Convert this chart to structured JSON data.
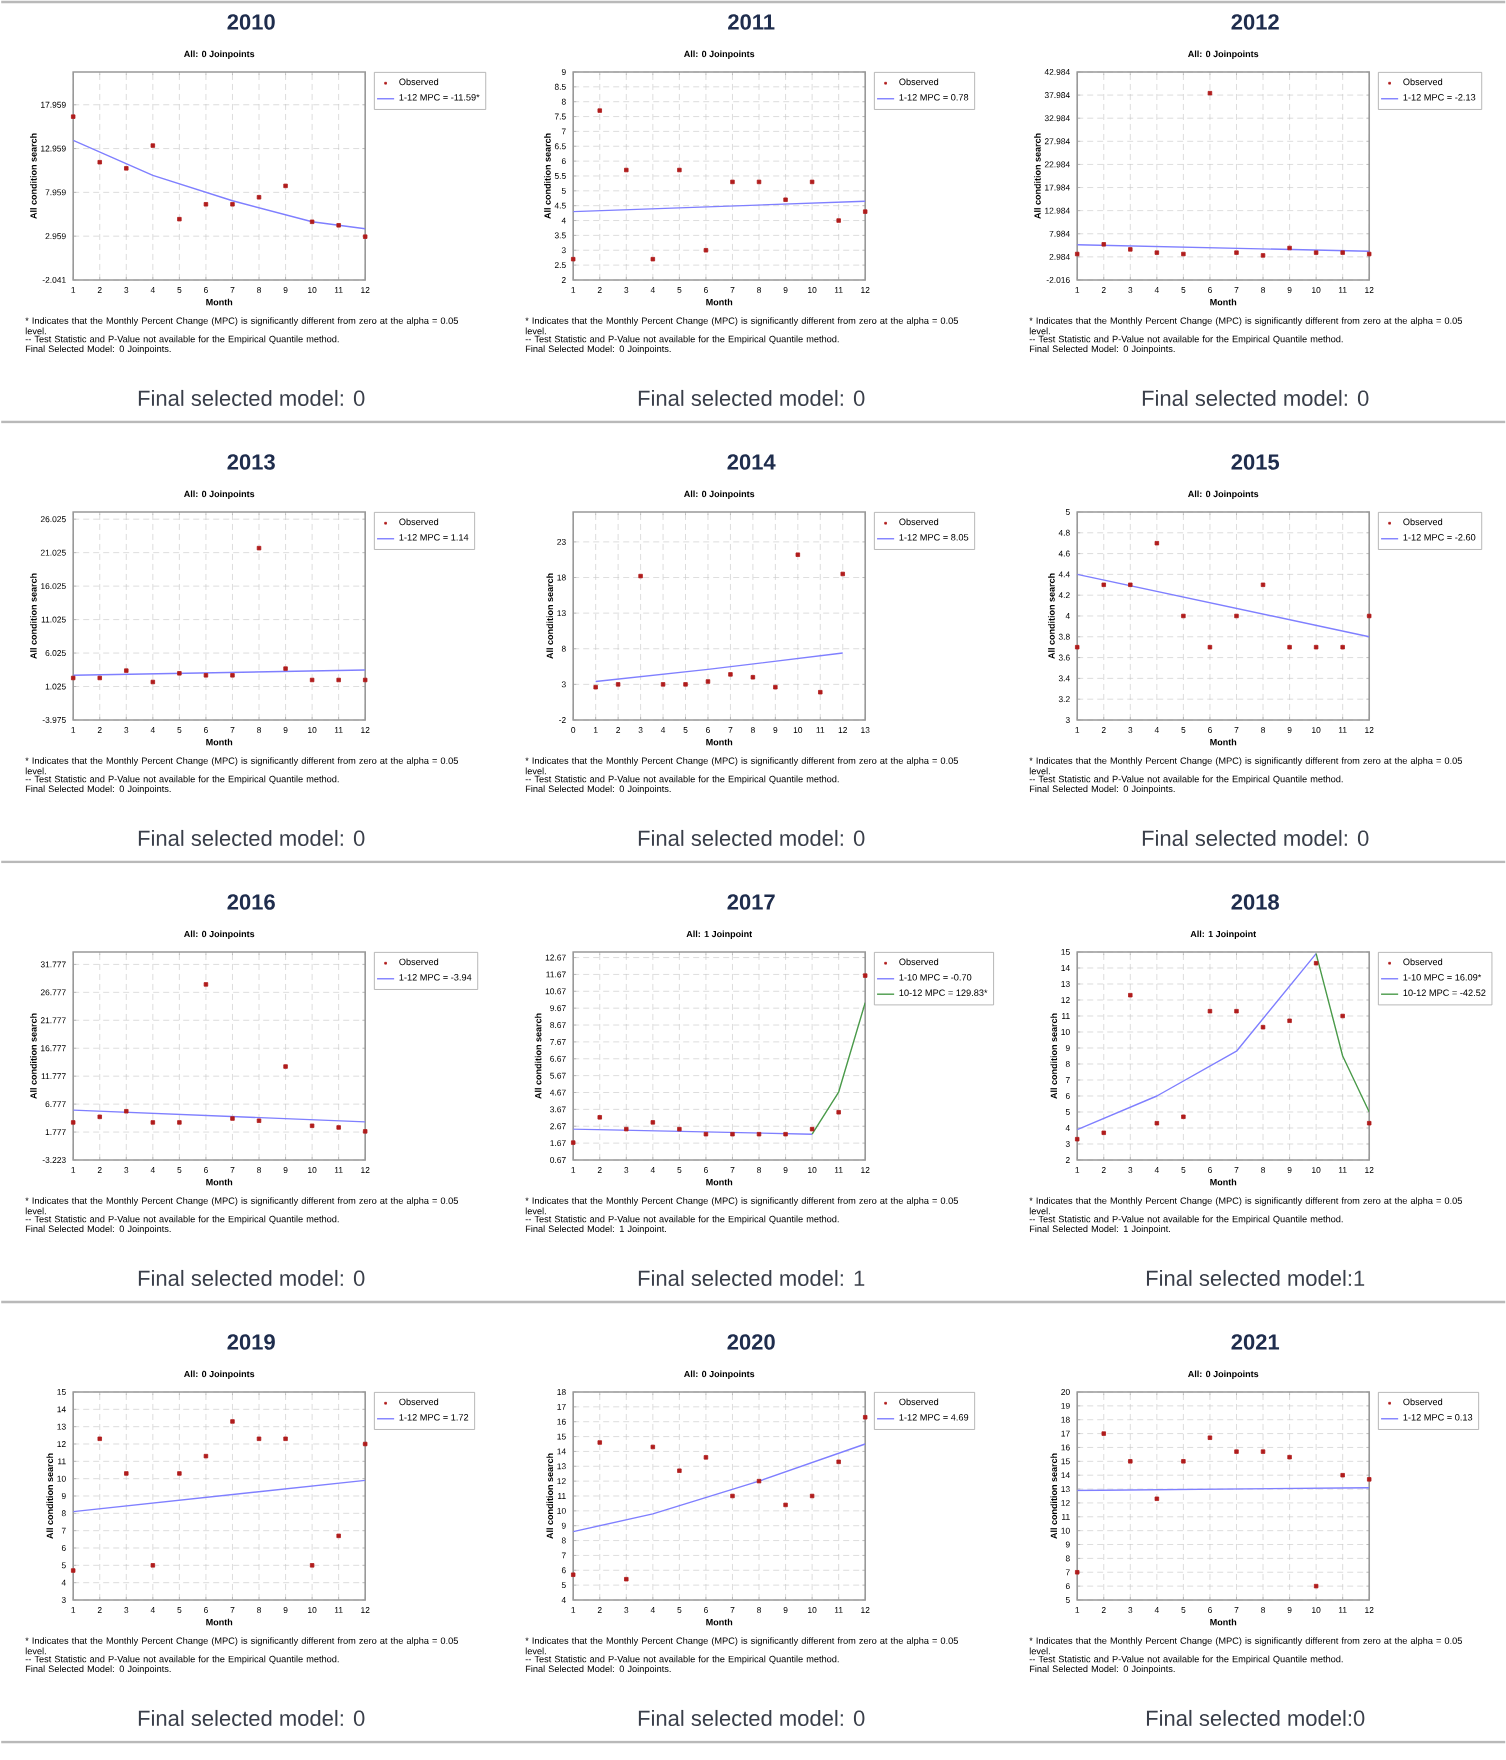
{
  "chart_data": [
    {
      "type": "scatter",
      "title": "2010",
      "subtitle": "All: 0 Joinpoints",
      "xlabel": "Month",
      "ylabel": "All condition search",
      "x": [
        1,
        2,
        3,
        4,
        5,
        6,
        7,
        8,
        9,
        10,
        11,
        12
      ],
      "xlim": [
        1,
        12
      ],
      "xticks": [
        1,
        2,
        3,
        4,
        5,
        6,
        7,
        8,
        9,
        10,
        11,
        12
      ],
      "ylim": [
        -2.041,
        21.7
      ],
      "yticks": [
        -2.041,
        2.959,
        7.959,
        12.959,
        17.959
      ],
      "grid": true,
      "legend": "right",
      "series": [
        {
          "name": "Observed",
          "type": "scatter",
          "marker": "square",
          "color": "#b01c1c",
          "values": [
            16.6,
            11.4,
            10.7,
            13.3,
            4.9,
            6.6,
            6.6,
            7.4,
            8.7,
            4.6,
            4.2,
            2.9
          ]
        },
        {
          "name": "1-12 MPC = -11.59*",
          "type": "line",
          "color": "#7f7fff",
          "x": [
            1,
            4,
            7,
            10,
            12
          ],
          "values": [
            13.9,
            9.9,
            7.0,
            4.6,
            3.8
          ]
        }
      ],
      "annotations": [
        "* Indicates that the Monthly Percent Change (MPC) is significantly different from zero at the alpha = 0.05 level.",
        "-- Test Statistic and P-Value not available for the Empirical Quantile method.",
        "Final Selected Model: 0 Joinpoints.",
        "Final selected model: 0"
      ]
    },
    {
      "type": "scatter",
      "title": "2011",
      "subtitle": "All: 0 Joinpoints",
      "xlabel": "Month",
      "ylabel": "All condition search",
      "x": [
        1,
        2,
        3,
        4,
        5,
        6,
        7,
        8,
        9,
        10,
        11,
        12
      ],
      "xlim": [
        1,
        12
      ],
      "xticks": [
        1,
        2,
        3,
        4,
        5,
        6,
        7,
        8,
        9,
        10,
        11,
        12
      ],
      "ylim": [
        2,
        9
      ],
      "yticks": [
        2,
        2.5,
        3,
        3.5,
        4,
        4.5,
        5,
        5.5,
        6,
        6.5,
        7,
        7.5,
        8,
        8.5,
        9
      ],
      "grid": true,
      "legend": "right",
      "series": [
        {
          "name": "Observed",
          "type": "scatter",
          "marker": "square",
          "color": "#b01c1c",
          "values": [
            2.7,
            7.7,
            5.7,
            2.7,
            5.7,
            3.0,
            5.3,
            5.3,
            4.7,
            5.3,
            4.0,
            4.3
          ]
        },
        {
          "name": "1-12 MPC = 0.78",
          "type": "line",
          "color": "#7f7fff",
          "x": [
            1,
            12
          ],
          "values": [
            4.3,
            4.65
          ]
        }
      ],
      "annotations": [
        "* Indicates that the Monthly Percent Change (MPC) is significantly different from zero at the alpha = 0.05 level.",
        "-- Test Statistic and P-Value not available for the Empirical Quantile method.",
        "Final Selected Model: 0 Joinpoints.",
        "Final selected model: 0"
      ]
    },
    {
      "type": "scatter",
      "title": "2012",
      "subtitle": "All: 0 Joinpoints",
      "xlabel": "Month",
      "ylabel": "All condition search",
      "x": [
        1,
        2,
        3,
        4,
        5,
        6,
        7,
        8,
        9,
        10,
        11,
        12
      ],
      "xlim": [
        1,
        12
      ],
      "xticks": [
        1,
        2,
        3,
        4,
        5,
        6,
        7,
        8,
        9,
        10,
        11,
        12
      ],
      "ylim": [
        -2.016,
        42.984
      ],
      "yticks": [
        -2.016,
        2.984,
        7.984,
        12.984,
        17.984,
        22.984,
        27.984,
        32.984,
        37.984,
        42.984
      ],
      "grid": true,
      "legend": "right",
      "series": [
        {
          "name": "Observed",
          "type": "scatter",
          "marker": "square",
          "color": "#b01c1c",
          "values": [
            3.6,
            5.7,
            4.6,
            3.9,
            3.6,
            38.4,
            3.9,
            3.3,
            4.9,
            3.9,
            3.9,
            3.6
          ]
        },
        {
          "name": "1-12 MPC = -2.13",
          "type": "line",
          "color": "#7f7fff",
          "x": [
            1,
            12
          ],
          "values": [
            5.6,
            4.2
          ]
        }
      ],
      "annotations": [
        "* Indicates that the Monthly Percent Change (MPC) is significantly different from zero at the alpha = 0.05 level.",
        "-- Test Statistic and P-Value not available for the Empirical Quantile method.",
        "Final Selected Model: 0 Joinpoints.",
        "Final selected model: 0"
      ]
    },
    {
      "type": "scatter",
      "title": "2013",
      "subtitle": "All: 0 Joinpoints",
      "xlabel": "Month",
      "ylabel": "All condition search",
      "x": [
        1,
        2,
        3,
        4,
        5,
        6,
        7,
        8,
        9,
        10,
        11,
        12
      ],
      "xlim": [
        1,
        12
      ],
      "xticks": [
        1,
        2,
        3,
        4,
        5,
        6,
        7,
        8,
        9,
        10,
        11,
        12
      ],
      "ylim": [
        -3.975,
        27.1
      ],
      "yticks": [
        -3.975,
        1.025,
        6.025,
        11.025,
        16.025,
        21.025,
        26.025
      ],
      "grid": true,
      "legend": "right",
      "series": [
        {
          "name": "Observed",
          "type": "scatter",
          "marker": "square",
          "color": "#b01c1c",
          "values": [
            2.3,
            2.3,
            3.4,
            1.7,
            3.0,
            2.7,
            2.7,
            21.7,
            3.7,
            2.0,
            2.0,
            2.0
          ]
        },
        {
          "name": "1-12 MPC = 1.14",
          "type": "line",
          "color": "#7f7fff",
          "x": [
            1,
            12
          ],
          "values": [
            2.7,
            3.5
          ]
        }
      ],
      "annotations": [
        "* Indicates that the Monthly Percent Change (MPC) is significantly different from zero at the alpha = 0.05 level.",
        "-- Test Statistic and P-Value not available for the Empirical Quantile method.",
        "Final Selected Model: 0 Joinpoints.",
        "Final selected model: 0"
      ]
    },
    {
      "type": "scatter",
      "title": "2014",
      "subtitle": "All: 0 Joinpoints",
      "xlabel": "Month",
      "ylabel": "All condition search",
      "x": [
        1,
        2,
        3,
        4,
        5,
        6,
        7,
        8,
        9,
        10,
        11,
        12
      ],
      "xlim": [
        0,
        13
      ],
      "xticks": [
        0,
        1,
        2,
        3,
        4,
        5,
        6,
        7,
        8,
        9,
        10,
        11,
        12,
        13
      ],
      "ylim": [
        -2,
        27.2
      ],
      "yticks": [
        -2,
        3,
        8,
        13,
        18,
        23
      ],
      "grid": true,
      "legend": "right",
      "series": [
        {
          "name": "Observed",
          "type": "scatter",
          "marker": "square",
          "color": "#b01c1c",
          "values": [
            2.6,
            3.0,
            18.2,
            3.0,
            3.0,
            3.4,
            4.4,
            4.0,
            2.6,
            21.2,
            1.9,
            18.5
          ]
        },
        {
          "name": "1-12 MPC = 8.05",
          "type": "line",
          "color": "#7f7fff",
          "x": [
            1,
            6,
            12
          ],
          "values": [
            3.4,
            5.1,
            7.4
          ]
        }
      ],
      "annotations": [
        "* Indicates that the Monthly Percent Change (MPC) is significantly different from zero at the alpha = 0.05 level.",
        "-- Test Statistic and P-Value not available for the Empirical Quantile method.",
        "Final Selected Model: 0 Joinpoints.",
        "Final selected model: 0"
      ]
    },
    {
      "type": "scatter",
      "title": "2015",
      "subtitle": "All: 0 Joinpoints",
      "xlabel": "Month",
      "ylabel": "All condition search",
      "x": [
        1,
        2,
        3,
        4,
        5,
        6,
        7,
        8,
        9,
        10,
        11,
        12
      ],
      "xlim": [
        1,
        12
      ],
      "xticks": [
        1,
        2,
        3,
        4,
        5,
        6,
        7,
        8,
        9,
        10,
        11,
        12
      ],
      "ylim": [
        3,
        5
      ],
      "yticks": [
        3,
        3.2,
        3.4,
        3.6,
        3.8,
        4,
        4.2,
        4.4,
        4.6,
        4.8,
        5
      ],
      "grid": true,
      "legend": "right",
      "series": [
        {
          "name": "Observed",
          "type": "scatter",
          "marker": "square",
          "color": "#b01c1c",
          "values": [
            3.7,
            4.3,
            4.3,
            4.7,
            4.0,
            3.7,
            4.0,
            4.3,
            3.7,
            3.7,
            3.7,
            4.0
          ]
        },
        {
          "name": "1-12 MPC = -2.60",
          "type": "line",
          "color": "#7f7fff",
          "x": [
            1,
            12
          ],
          "values": [
            4.4,
            3.8
          ]
        }
      ],
      "annotations": [
        "* Indicates that the Monthly Percent Change (MPC) is significantly different from zero at the alpha = 0.05 level.",
        "-- Test Statistic and P-Value not available for the Empirical Quantile method.",
        "Final Selected Model: 0 Joinpoints.",
        "Final selected model: 0"
      ]
    },
    {
      "type": "scatter",
      "title": "2016",
      "subtitle": "All: 0 Joinpoints",
      "xlabel": "Month",
      "ylabel": "All condition search",
      "x": [
        1,
        2,
        3,
        4,
        5,
        6,
        7,
        8,
        9,
        10,
        11,
        12
      ],
      "xlim": [
        1,
        12
      ],
      "xticks": [
        1,
        2,
        3,
        4,
        5,
        6,
        7,
        8,
        9,
        10,
        11,
        12
      ],
      "ylim": [
        -3.223,
        34.0
      ],
      "yticks": [
        -3.223,
        1.777,
        6.777,
        11.777,
        16.777,
        21.777,
        26.777,
        31.777
      ],
      "grid": true,
      "legend": "right",
      "series": [
        {
          "name": "Observed",
          "type": "scatter",
          "marker": "square",
          "color": "#b01c1c",
          "values": [
            3.5,
            4.5,
            5.5,
            3.5,
            3.5,
            28.2,
            4.2,
            3.8,
            13.5,
            2.9,
            2.6,
            1.9
          ]
        },
        {
          "name": "1-12 MPC = -3.94",
          "type": "line",
          "color": "#7f7fff",
          "x": [
            1,
            12
          ],
          "values": [
            5.7,
            3.6
          ]
        }
      ],
      "annotations": [
        "* Indicates that the Monthly Percent Change (MPC) is significantly different from zero at the alpha = 0.05 level.",
        "-- Test Statistic and P-Value not available for the Empirical Quantile method.",
        "Final Selected Model: 0 Joinpoints.",
        "Final selected model: 0"
      ]
    },
    {
      "type": "scatter",
      "title": "2017",
      "subtitle": "All: 1 Joinpoint",
      "xlabel": "Month",
      "ylabel": "All condition search",
      "x": [
        1,
        2,
        3,
        4,
        5,
        6,
        7,
        8,
        9,
        10,
        11,
        12
      ],
      "xlim": [
        1,
        12
      ],
      "xticks": [
        1,
        2,
        3,
        4,
        5,
        6,
        7,
        8,
        9,
        10,
        11,
        12
      ],
      "ylim": [
        0.67,
        13.0
      ],
      "yticks": [
        0.67,
        1.67,
        2.67,
        3.67,
        4.67,
        5.67,
        6.67,
        7.67,
        8.67,
        9.67,
        10.67,
        11.67,
        12.67
      ],
      "grid": true,
      "legend": "right",
      "series": [
        {
          "name": "Observed",
          "type": "scatter",
          "marker": "square",
          "color": "#b01c1c",
          "values": [
            1.7,
            3.2,
            2.5,
            2.9,
            2.5,
            2.2,
            2.2,
            2.2,
            2.2,
            2.5,
            3.5,
            11.6
          ]
        },
        {
          "name": "1-10 MPC = -0.70",
          "type": "line",
          "color": "#7f7fff",
          "x": [
            1,
            10
          ],
          "values": [
            2.5,
            2.2
          ]
        },
        {
          "name": "10-12 MPC = 129.83*",
          "type": "line",
          "color": "#4a9a4a",
          "x": [
            10,
            11,
            12
          ],
          "values": [
            2.2,
            4.7,
            10.0
          ]
        }
      ],
      "annotations": [
        "* Indicates that the Monthly Percent Change (MPC) is significantly different from zero at the alpha = 0.05 level.",
        "-- Test Statistic and P-Value not available for the Empirical Quantile method.",
        "Final Selected Model: 1 Joinpoint.",
        "Final selected model: 1"
      ]
    },
    {
      "type": "scatter",
      "title": "2018",
      "subtitle": "All: 1 Joinpoint",
      "xlabel": "Month",
      "ylabel": "All condition search",
      "x": [
        1,
        2,
        3,
        4,
        5,
        6,
        7,
        8,
        9,
        10,
        11,
        12
      ],
      "xlim": [
        1,
        12
      ],
      "xticks": [
        1,
        2,
        3,
        4,
        5,
        6,
        7,
        8,
        9,
        10,
        11,
        12
      ],
      "ylim": [
        2,
        15
      ],
      "yticks": [
        2,
        3,
        4,
        5,
        6,
        7,
        8,
        9,
        10,
        11,
        12,
        13,
        14,
        15
      ],
      "grid": true,
      "legend": "right",
      "series": [
        {
          "name": "Observed",
          "type": "scatter",
          "marker": "square",
          "color": "#b01c1c",
          "values": [
            3.3,
            3.7,
            12.3,
            4.3,
            4.7,
            11.3,
            11.3,
            10.3,
            10.7,
            14.3,
            11.0,
            4.3
          ]
        },
        {
          "name": "1-10 MPC = 16.09*",
          "type": "line",
          "color": "#7f7fff",
          "x": [
            1,
            4,
            7,
            10
          ],
          "values": [
            3.9,
            6.0,
            8.8,
            14.9
          ]
        },
        {
          "name": "10-12 MPC = -42.52",
          "type": "line",
          "color": "#4a9a4a",
          "x": [
            10,
            11,
            12
          ],
          "values": [
            14.9,
            8.5,
            5.0
          ]
        }
      ],
      "annotations": [
        "* Indicates that the Monthly Percent Change (MPC) is significantly different from zero at the alpha = 0.05 level.",
        "-- Test Statistic and P-Value not available for the Empirical Quantile method.",
        "Final Selected Model: 1 Joinpoint.",
        "Final selected model:1"
      ]
    },
    {
      "type": "scatter",
      "title": "2019",
      "subtitle": "All: 0 Joinpoints",
      "xlabel": "Month",
      "ylabel": "All condition search",
      "x": [
        1,
        2,
        3,
        4,
        5,
        6,
        7,
        8,
        9,
        10,
        11,
        12
      ],
      "xlim": [
        1,
        12
      ],
      "xticks": [
        1,
        2,
        3,
        4,
        5,
        6,
        7,
        8,
        9,
        10,
        11,
        12
      ],
      "ylim": [
        3,
        15
      ],
      "yticks": [
        3,
        4,
        5,
        6,
        7,
        8,
        9,
        10,
        11,
        12,
        13,
        14,
        15
      ],
      "grid": true,
      "legend": "right",
      "series": [
        {
          "name": "Observed",
          "type": "scatter",
          "marker": "square",
          "color": "#b01c1c",
          "values": [
            4.7,
            12.3,
            10.3,
            5.0,
            10.3,
            11.3,
            13.3,
            12.3,
            12.3,
            5.0,
            6.7,
            12.0
          ]
        },
        {
          "name": "1-12 MPC = 1.72",
          "type": "line",
          "color": "#7f7fff",
          "x": [
            1,
            12
          ],
          "values": [
            8.1,
            9.9
          ]
        }
      ],
      "annotations": [
        "* Indicates that the Monthly Percent Change (MPC) is significantly different from zero at the alpha = 0.05 level.",
        "-- Test Statistic and P-Value not available for the Empirical Quantile method.",
        "Final Selected Model: 0 Joinpoints.",
        "Final selected model: 0"
      ]
    },
    {
      "type": "scatter",
      "title": "2020",
      "subtitle": "All: 0 Joinpoints",
      "xlabel": "Month",
      "ylabel": "All condition search",
      "x": [
        1,
        2,
        3,
        4,
        5,
        6,
        7,
        8,
        9,
        10,
        11,
        12
      ],
      "xlim": [
        1,
        12
      ],
      "xticks": [
        1,
        2,
        3,
        4,
        5,
        6,
        7,
        8,
        9,
        10,
        11,
        12
      ],
      "ylim": [
        4,
        18
      ],
      "yticks": [
        4,
        5,
        6,
        7,
        8,
        9,
        10,
        11,
        12,
        13,
        14,
        15,
        16,
        17,
        18
      ],
      "grid": true,
      "legend": "right",
      "series": [
        {
          "name": "Observed",
          "type": "scatter",
          "marker": "square",
          "color": "#b01c1c",
          "values": [
            5.7,
            14.6,
            5.4,
            14.3,
            12.7,
            13.6,
            11.0,
            12.0,
            10.4,
            11.0,
            13.3,
            16.3
          ]
        },
        {
          "name": "1-12 MPC = 4.69",
          "type": "line",
          "color": "#7f7fff",
          "x": [
            1,
            4,
            8,
            12
          ],
          "values": [
            8.6,
            9.8,
            12.0,
            14.5
          ]
        }
      ],
      "annotations": [
        "* Indicates that the Monthly Percent Change (MPC) is significantly different from zero at the alpha = 0.05 level.",
        "-- Test Statistic and P-Value not available for the Empirical Quantile method.",
        "Final Selected Model: 0 Joinpoints.",
        "Final selected model: 0"
      ]
    },
    {
      "type": "scatter",
      "title": "2021",
      "subtitle": "All: 0 Joinpoints",
      "xlabel": "Month",
      "ylabel": "All condition search",
      "x": [
        1,
        2,
        3,
        4,
        5,
        6,
        7,
        8,
        9,
        10,
        11,
        12
      ],
      "xlim": [
        1,
        12
      ],
      "xticks": [
        1,
        2,
        3,
        4,
        5,
        6,
        7,
        8,
        9,
        10,
        11,
        12
      ],
      "ylim": [
        5,
        20
      ],
      "yticks": [
        5,
        6,
        7,
        8,
        9,
        10,
        11,
        12,
        13,
        14,
        15,
        16,
        17,
        18,
        19,
        20
      ],
      "grid": true,
      "legend": "right",
      "series": [
        {
          "name": "Observed",
          "type": "scatter",
          "marker": "square",
          "color": "#b01c1c",
          "values": [
            7.0,
            17.0,
            15.0,
            12.3,
            15.0,
            16.7,
            15.7,
            15.7,
            15.3,
            6.0,
            14.0,
            13.7
          ]
        },
        {
          "name": "1-12 MPC = 0.13",
          "type": "line",
          "color": "#7f7fff",
          "x": [
            1,
            12
          ],
          "values": [
            12.9,
            13.1
          ]
        }
      ],
      "annotations": [
        "* Indicates that the Monthly Percent Change (MPC) is significantly different from zero at the alpha = 0.05 level.",
        "-- Test Statistic and P-Value not available for the Empirical Quantile method.",
        "Final Selected Model: 0 Joinpoints.",
        "Final selected model:0"
      ]
    }
  ]
}
